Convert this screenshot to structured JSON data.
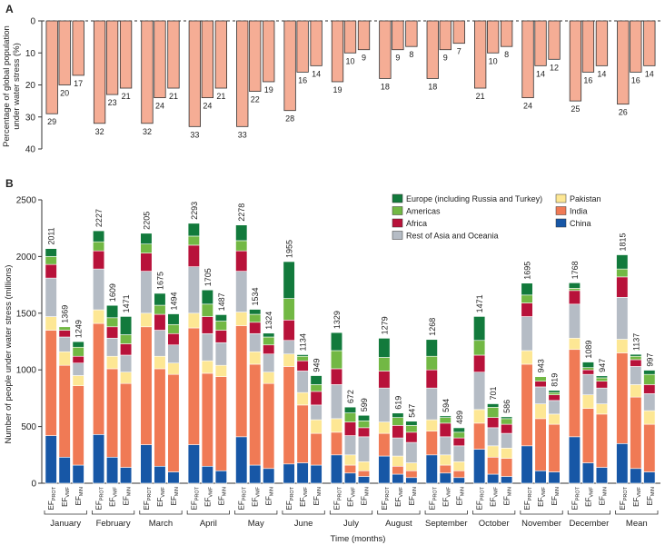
{
  "chart_data": [
    {
      "type": "bar",
      "panel": "A",
      "ylabel": "Percentage of global population under water stress (%)",
      "ylim": [
        0,
        40
      ],
      "yticks": [
        0,
        10,
        20,
        30,
        40
      ],
      "inverted": true,
      "categories": [
        "January",
        "February",
        "March",
        "April",
        "May",
        "June",
        "July",
        "August",
        "September",
        "October",
        "November",
        "December",
        "Mean"
      ],
      "series": [
        {
          "values": [
            29,
            32,
            32,
            33,
            33,
            28,
            19,
            18,
            18,
            21,
            24,
            25,
            26
          ]
        },
        {
          "values": [
            20,
            23,
            24,
            24,
            22,
            16,
            10,
            9,
            9,
            10,
            14,
            16,
            16
          ]
        },
        {
          "values": [
            17,
            21,
            21,
            21,
            19,
            14,
            9,
            8,
            7,
            8,
            12,
            14,
            14
          ]
        }
      ],
      "colors": {
        "bar_fill": "#f5ad95",
        "bar_edge": "#333333"
      }
    },
    {
      "type": "bar",
      "stacked": true,
      "panel": "B",
      "ylabel": "Number of people under water stress (millions)",
      "xlabel": "Time (months)",
      "ylim": [
        0,
        2500
      ],
      "yticks": [
        0,
        500,
        1000,
        1500,
        2000,
        2500
      ],
      "categories": [
        "January",
        "February",
        "March",
        "April",
        "May",
        "June",
        "July",
        "August",
        "September",
        "October",
        "November",
        "December",
        "Mean"
      ],
      "sublabels": [
        {
          "base": "EF",
          "sub": "PROT"
        },
        {
          "base": "EF",
          "sub": "VMF"
        },
        {
          "base": "EF",
          "sub": "MIN"
        }
      ],
      "legend": {
        "items": [
          {
            "name": "Europe (including Russia and Turkey)",
            "color": "#127a3c"
          },
          {
            "name": "Pakistan",
            "color": "#fde794"
          },
          {
            "name": "Americas",
            "color": "#72b844"
          },
          {
            "name": "India",
            "color": "#f07a55"
          },
          {
            "name": "Africa",
            "color": "#b8123a"
          },
          {
            "name": "China",
            "color": "#1757a6"
          },
          {
            "name": "Rest of Asia and Oceania",
            "color": "#b5bcc5"
          }
        ]
      },
      "stack_order": [
        "China",
        "India",
        "Pakistan",
        "Rest of Asia and Oceania",
        "Africa",
        "Americas",
        "Europe (including Russia and Turkey)"
      ],
      "colors": {
        "China": "#1757a6",
        "India": "#f07a55",
        "Pakistan": "#fde794",
        "Rest of Asia and Oceania": "#b5bcc5",
        "Africa": "#b8123a",
        "Americas": "#72b844",
        "Europe (including Russia and Turkey)": "#127a3c"
      },
      "totals": [
        [
          2011,
          1369,
          1249
        ],
        [
          2227,
          1609,
          1471
        ],
        [
          2205,
          1675,
          1494
        ],
        [
          2293,
          1705,
          1487
        ],
        [
          2278,
          1534,
          1324
        ],
        [
          1955,
          1134,
          949
        ],
        [
          1329,
          672,
          599
        ],
        [
          1279,
          619,
          547
        ],
        [
          1268,
          594,
          489
        ],
        [
          1471,
          701,
          586
        ],
        [
          1695,
          943,
          819
        ],
        [
          1768,
          1089,
          947
        ],
        [
          1815,
          1137,
          997
        ]
      ],
      "segments": [
        [
          [
            420,
            930,
            120,
            340,
            120,
            70,
            70
          ],
          [
            230,
            810,
            120,
            130,
            60,
            30,
            0
          ],
          [
            160,
            700,
            90,
            110,
            60,
            80,
            49
          ]
        ],
        [
          [
            430,
            980,
            120,
            360,
            160,
            80,
            97
          ],
          [
            230,
            780,
            110,
            160,
            100,
            80,
            109
          ],
          [
            140,
            740,
            100,
            150,
            100,
            80,
            161
          ]
        ],
        [
          [
            340,
            1040,
            120,
            370,
            160,
            80,
            95
          ],
          [
            150,
            860,
            110,
            230,
            140,
            80,
            105
          ],
          [
            100,
            860,
            100,
            160,
            100,
            80,
            94
          ]
        ],
        [
          [
            340,
            1030,
            130,
            410,
            190,
            80,
            113
          ],
          [
            150,
            820,
            110,
            240,
            150,
            110,
            125
          ],
          [
            110,
            830,
            100,
            200,
            110,
            80,
            57
          ]
        ],
        [
          [
            410,
            980,
            120,
            360,
            180,
            90,
            138
          ],
          [
            160,
            890,
            110,
            160,
            100,
            70,
            44
          ],
          [
            130,
            750,
            100,
            160,
            80,
            70,
            34
          ]
        ],
        [
          [
            170,
            860,
            110,
            120,
            180,
            190,
            325
          ],
          [
            180,
            510,
            110,
            190,
            90,
            40,
            14
          ],
          [
            160,
            280,
            120,
            130,
            120,
            60,
            79
          ]
        ],
        [
          [
            250,
            200,
            120,
            300,
            140,
            160,
            159
          ],
          [
            90,
            70,
            90,
            170,
            120,
            80,
            52
          ],
          [
            60,
            50,
            80,
            220,
            80,
            60,
            49
          ]
        ],
        [
          [
            240,
            200,
            100,
            300,
            150,
            120,
            169
          ],
          [
            80,
            70,
            90,
            160,
            110,
            70,
            39
          ],
          [
            50,
            60,
            70,
            180,
            90,
            60,
            37
          ]
        ],
        [
          [
            250,
            210,
            100,
            280,
            160,
            120,
            148
          ],
          [
            90,
            70,
            90,
            160,
            120,
            50,
            14
          ],
          [
            50,
            60,
            80,
            140,
            70,
            50,
            39
          ]
        ],
        [
          [
            300,
            230,
            120,
            330,
            150,
            130,
            211
          ],
          [
            80,
            150,
            100,
            160,
            90,
            90,
            31
          ],
          [
            60,
            160,
            90,
            130,
            80,
            50,
            16
          ]
        ],
        [
          [
            330,
            720,
            120,
            300,
            120,
            70,
            105
          ],
          [
            110,
            460,
            130,
            150,
            50,
            40,
            3
          ],
          [
            100,
            420,
            90,
            120,
            50,
            20,
            19
          ]
        ],
        [
          [
            410,
            770,
            100,
            300,
            120,
            20,
            48
          ],
          [
            180,
            480,
            120,
            180,
            40,
            20,
            49
          ],
          [
            140,
            470,
            90,
            140,
            60,
            30,
            17
          ]
        ],
        [
          [
            350,
            800,
            120,
            370,
            180,
            70,
            125
          ],
          [
            130,
            630,
            110,
            160,
            60,
            30,
            17
          ],
          [
            100,
            420,
            120,
            150,
            80,
            90,
            37
          ]
        ]
      ]
    }
  ],
  "panel_letters": {
    "a": "A",
    "b": "B"
  }
}
